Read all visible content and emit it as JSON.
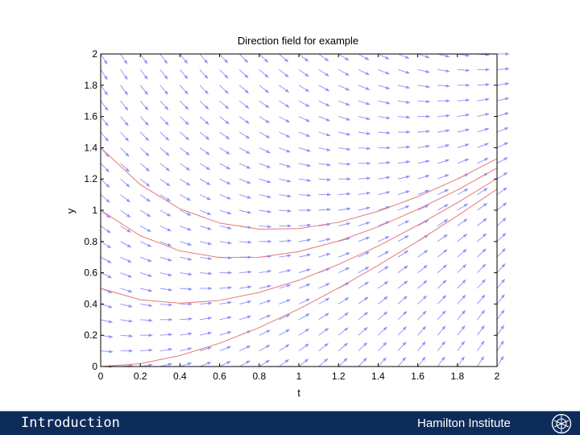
{
  "chart_data": {
    "type": "quiver",
    "title": "Direction field for example",
    "xlabel": "t",
    "ylabel": "y",
    "xlim": [
      0,
      2
    ],
    "ylim": [
      0,
      2
    ],
    "xticks": [
      "0",
      "0.2",
      "0.4",
      "0.6",
      "0.8",
      "1",
      "1.2",
      "1.4",
      "1.6",
      "1.8",
      "2"
    ],
    "yticks": [
      "0",
      "0.2",
      "0.4",
      "0.6",
      "0.8",
      "1",
      "1.2",
      "1.4",
      "1.6",
      "1.8",
      "2"
    ],
    "grid": false,
    "field": {
      "t_start": 0,
      "t_end": 2,
      "t_count": 21,
      "y_start": 0,
      "y_end": 2,
      "y_count": 21,
      "slope": "t - y",
      "color": "#8f8fff"
    },
    "solution_curves": [
      {
        "t": [
          0,
          0.2,
          0.4,
          0.6,
          0.8,
          1.0,
          1.2,
          1.4,
          1.6,
          1.8,
          2.0
        ],
        "y": [
          0.0,
          0.018,
          0.07,
          0.149,
          0.249,
          0.368,
          0.502,
          0.647,
          0.802,
          0.965,
          1.135
        ]
      },
      {
        "t": [
          0,
          0.2,
          0.4,
          0.6,
          0.8,
          1.0,
          1.2,
          1.4,
          1.6,
          1.8,
          2.0
        ],
        "y": [
          0.5,
          0.427,
          0.405,
          0.423,
          0.474,
          0.552,
          0.653,
          0.771,
          0.904,
          1.048,
          1.203
        ]
      },
      {
        "t": [
          0,
          0.2,
          0.4,
          0.6,
          0.8,
          1.0,
          1.2,
          1.4,
          1.6,
          1.8,
          2.0
        ],
        "y": [
          1.0,
          0.837,
          0.74,
          0.697,
          0.699,
          0.736,
          0.803,
          0.894,
          1.006,
          1.13,
          1.27
        ]
      },
      {
        "t": [
          0,
          0.2,
          0.4,
          0.6,
          0.8,
          1.0,
          1.2,
          1.4,
          1.6,
          1.8,
          2.0
        ],
        "y": [
          1.4,
          1.164,
          1.009,
          0.918,
          0.879,
          0.883,
          0.923,
          0.993,
          1.087,
          1.2,
          1.33
        ]
      }
    ],
    "curve_color": "#e87878"
  },
  "footer": {
    "left_text": "Introduction",
    "right_text": "Hamilton Institute",
    "background": "#0e2c5a"
  }
}
